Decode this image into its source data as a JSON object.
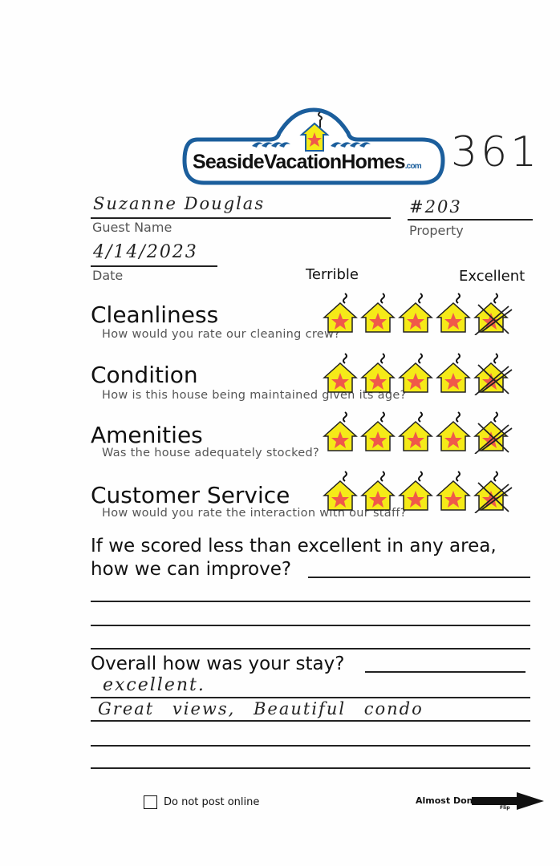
{
  "logo": {
    "text": "SeasideVacationHomes",
    "suffix": ".com",
    "colors": {
      "blue": "#1b5e9c",
      "house": "#f5ea18",
      "star": "#f0584a"
    }
  },
  "form_number": "361",
  "guest": {
    "value": "Suzanne Douglas",
    "label": "Guest Name"
  },
  "property": {
    "value": "#203",
    "label": "Property"
  },
  "date": {
    "value": "4/14/2023",
    "label": "Date"
  },
  "scale": {
    "low": "Terrible",
    "high": "Excellent",
    "max": 5
  },
  "categories": [
    {
      "title": "Cleanliness",
      "question": "How would you rate our cleaning crew?",
      "marked": 5
    },
    {
      "title": "Condition",
      "question": "How is this house being maintained given its age?",
      "marked": 5
    },
    {
      "title": "Amenities",
      "question": "Was the house adequately stocked?",
      "marked": 5
    },
    {
      "title": "Customer Service",
      "question": "How would you rate the interaction with our staff?",
      "marked": 5
    }
  ],
  "improve": {
    "question_line1": "If we scored less than excellent in any area,",
    "question_line2": "how we can improve?",
    "answer": ""
  },
  "overall": {
    "question": "Overall how was your stay?",
    "answer_lines": [
      "excellent.",
      "Great views, Beautiful condo"
    ]
  },
  "footer": {
    "checkbox_label": "Do not post online",
    "checked": false,
    "next_label": "Almost Done",
    "flip_label": "Flip"
  }
}
